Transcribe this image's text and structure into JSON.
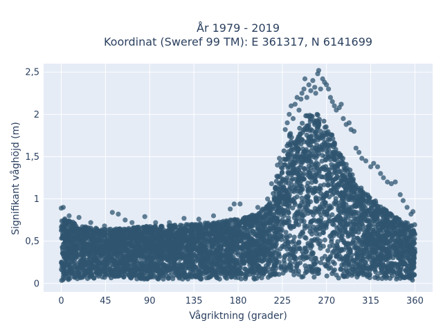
{
  "chart_data": {
    "type": "scatter",
    "title_lines": [
      "År 1979 - 2019",
      "Koordinat (Sweref 99 TM): E 361317, N 6141699"
    ],
    "xlabel": "Vågriktning (grader)",
    "ylabel": "Signifikant våghöjd (m)",
    "xlim": [
      -18,
      378
    ],
    "ylim": [
      -0.1,
      2.6
    ],
    "x_ticks": [
      {
        "value": 0,
        "label": "0"
      },
      {
        "value": 45,
        "label": "45"
      },
      {
        "value": 90,
        "label": "90"
      },
      {
        "value": 135,
        "label": "135"
      },
      {
        "value": 180,
        "label": "180"
      },
      {
        "value": 225,
        "label": "225"
      },
      {
        "value": 270,
        "label": "270"
      },
      {
        "value": 315,
        "label": "315"
      },
      {
        "value": 360,
        "label": "360"
      }
    ],
    "y_ticks": [
      {
        "value": 0,
        "label": "0"
      },
      {
        "value": 0.5,
        "label": "0,5"
      },
      {
        "value": 1,
        "label": "1"
      },
      {
        "value": 1.5,
        "label": "1,5"
      },
      {
        "value": 2,
        "label": "2"
      },
      {
        "value": 2.5,
        "label": "2,5"
      }
    ],
    "grid": true,
    "marker_color": "#2f5570",
    "plot_background": "#e5ecf6",
    "envelope": {
      "x": [
        0,
        5,
        15,
        30,
        45,
        60,
        75,
        90,
        105,
        120,
        135,
        150,
        165,
        180,
        190,
        200,
        210,
        215,
        220,
        225,
        230,
        235,
        240,
        245,
        250,
        255,
        260,
        265,
        270,
        275,
        280,
        285,
        290,
        295,
        300,
        305,
        310,
        315,
        320,
        325,
        330,
        335,
        340,
        345,
        350,
        355,
        360
      ],
      "lower": [
        0.02,
        0.03,
        0.04,
        0.05,
        0.05,
        0.05,
        0.05,
        0.05,
        0.05,
        0.05,
        0.05,
        0.05,
        0.05,
        0.05,
        0.05,
        0.05,
        0.06,
        0.06,
        0.06,
        0.06,
        0.06,
        0.06,
        0.06,
        0.06,
        0.06,
        0.06,
        0.06,
        0.06,
        0.06,
        0.06,
        0.06,
        0.06,
        0.06,
        0.06,
        0.06,
        0.06,
        0.05,
        0.05,
        0.05,
        0.05,
        0.05,
        0.05,
        0.05,
        0.05,
        0.05,
        0.04,
        0.03
      ],
      "upper": [
        0.75,
        0.78,
        0.7,
        0.66,
        0.64,
        0.65,
        0.67,
        0.68,
        0.68,
        0.7,
        0.7,
        0.72,
        0.74,
        0.77,
        0.79,
        0.84,
        0.92,
        1.05,
        1.3,
        1.55,
        1.72,
        1.83,
        1.9,
        1.96,
        2.0,
        2.02,
        2.02,
        1.98,
        1.9,
        1.78,
        1.64,
        1.52,
        1.42,
        1.32,
        1.22,
        1.14,
        1.08,
        1.02,
        0.98,
        0.93,
        0.88,
        0.83,
        0.79,
        0.76,
        0.73,
        0.72,
        0.7
      ]
    },
    "outliers": [
      [
        0,
        0.89
      ],
      [
        2,
        0.9
      ],
      [
        8,
        0.8
      ],
      [
        18,
        0.78
      ],
      [
        30,
        0.72
      ],
      [
        44,
        0.68
      ],
      [
        52,
        0.84
      ],
      [
        58,
        0.82
      ],
      [
        65,
        0.75
      ],
      [
        72,
        0.72
      ],
      [
        85,
        0.79
      ],
      [
        96,
        0.72
      ],
      [
        110,
        0.72
      ],
      [
        125,
        0.77
      ],
      [
        140,
        0.76
      ],
      [
        155,
        0.8
      ],
      [
        172,
        0.88
      ],
      [
        176,
        0.94
      ],
      [
        182,
        0.94
      ],
      [
        200,
        0.9
      ],
      [
        210,
        1.0
      ],
      [
        214,
        1.18
      ],
      [
        220,
        1.4
      ],
      [
        222,
        1.48
      ],
      [
        228,
        1.82
      ],
      [
        230,
        1.9
      ],
      [
        232,
        2.0
      ],
      [
        234,
        2.1
      ],
      [
        236,
        1.95
      ],
      [
        238,
        2.12
      ],
      [
        240,
        2.2
      ],
      [
        242,
        2.05
      ],
      [
        244,
        2.18
      ],
      [
        245,
        2.25
      ],
      [
        247,
        2.3
      ],
      [
        248,
        2.42
      ],
      [
        250,
        2.2
      ],
      [
        252,
        2.35
      ],
      [
        254,
        2.28
      ],
      [
        256,
        2.4
      ],
      [
        258,
        2.32
      ],
      [
        259,
        2.25
      ],
      [
        261,
        2.48
      ],
      [
        262,
        2.52
      ],
      [
        264,
        2.3
      ],
      [
        266,
        2.42
      ],
      [
        268,
        2.38
      ],
      [
        270,
        2.35
      ],
      [
        272,
        2.3
      ],
      [
        274,
        2.2
      ],
      [
        276,
        2.15
      ],
      [
        278,
        2.1
      ],
      [
        280,
        2.05
      ],
      [
        283,
        2.08
      ],
      [
        285,
        2.12
      ],
      [
        287,
        1.95
      ],
      [
        290,
        1.88
      ],
      [
        293,
        1.9
      ],
      [
        295,
        1.82
      ],
      [
        298,
        1.8
      ],
      [
        300,
        1.6
      ],
      [
        303,
        1.55
      ],
      [
        306,
        1.48
      ],
      [
        310,
        1.45
      ],
      [
        315,
        1.38
      ],
      [
        318,
        1.42
      ],
      [
        322,
        1.38
      ],
      [
        325,
        1.3
      ],
      [
        328,
        1.25
      ],
      [
        332,
        1.2
      ],
      [
        336,
        1.18
      ],
      [
        340,
        1.2
      ],
      [
        345,
        1.05
      ],
      [
        348,
        0.98
      ],
      [
        352,
        0.9
      ],
      [
        356,
        0.82
      ],
      [
        358,
        0.85
      ]
    ]
  }
}
